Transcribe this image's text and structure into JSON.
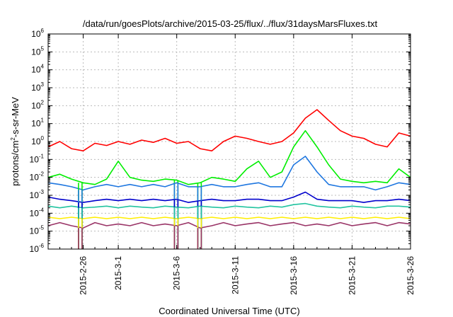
{
  "chart_data": {
    "type": "line",
    "title": "/data/run/goesPlots/archive/2015-03-25/flux/../flux/31daysMarsFluxes.txt",
    "xlabel": "Coordinated Universal Time (UTC)",
    "ylabel": "protons/cm²-s-sr-MeV",
    "ylabel_parts": {
      "pre": "protons/cm",
      "sup": "2",
      "post": "-s-sr-MeV"
    },
    "y_scale": "log",
    "ylim": [
      1e-06,
      1000000.0
    ],
    "xlim": [
      "2015-02-23",
      "2015-03-26"
    ],
    "grid": true,
    "y_ticks": [
      {
        "exp": "-6",
        "value": 1e-06
      },
      {
        "exp": "-5",
        "value": 1e-05
      },
      {
        "exp": "-4",
        "value": 0.0001
      },
      {
        "exp": "-3",
        "value": 0.001
      },
      {
        "exp": "-2",
        "value": 0.01
      },
      {
        "exp": "-1",
        "value": 0.1
      },
      {
        "exp": "0",
        "value": 1
      },
      {
        "exp": "1",
        "value": 10
      },
      {
        "exp": "2",
        "value": 100
      },
      {
        "exp": "3",
        "value": 1000
      },
      {
        "exp": "4",
        "value": 10000
      },
      {
        "exp": "5",
        "value": 100000
      },
      {
        "exp": "6",
        "value": 1000000
      }
    ],
    "x_ticks": [
      {
        "label": "2015-2-26",
        "day": 3
      },
      {
        "label": "2015-3-1",
        "day": 6
      },
      {
        "label": "2015-3-6",
        "day": 11
      },
      {
        "label": "2015-3-11",
        "day": 16
      },
      {
        "label": "2015-3-16",
        "day": 21
      },
      {
        "label": "2015-3-21",
        "day": 26
      },
      {
        "label": "2015-3-26",
        "day": 31
      }
    ],
    "series": [
      {
        "color": "#ff0000",
        "x": [
          0,
          1,
          2,
          3,
          4,
          5,
          6,
          7,
          8,
          9,
          10,
          11,
          12,
          13,
          14,
          15,
          16,
          17,
          18,
          19,
          20,
          21,
          22,
          23,
          24,
          25,
          26,
          27,
          28,
          29,
          30,
          31
        ],
        "y": [
          0.5,
          1.0,
          0.4,
          0.3,
          0.8,
          0.6,
          1.0,
          0.7,
          1.2,
          0.9,
          1.5,
          0.8,
          1.0,
          0.4,
          0.3,
          1.0,
          2.0,
          1.5,
          1.0,
          0.7,
          1.0,
          3.0,
          20,
          60,
          15,
          4,
          2,
          1.5,
          0.7,
          0.5,
          3,
          2
        ]
      },
      {
        "color": "#00ee00",
        "x": [
          0,
          1,
          2,
          3,
          4,
          5,
          6,
          7,
          8,
          9,
          10,
          11,
          12,
          13,
          14,
          15,
          16,
          17,
          18,
          19,
          20,
          21,
          22,
          23,
          24,
          25,
          26,
          27,
          28,
          29,
          30,
          31
        ],
        "y": [
          0.01,
          0.015,
          0.008,
          0.005,
          0.004,
          0.008,
          0.08,
          0.01,
          0.007,
          0.006,
          0.008,
          0.007,
          0.004,
          0.005,
          0.01,
          0.008,
          0.006,
          0.03,
          0.08,
          0.01,
          0.02,
          0.5,
          4,
          0.5,
          0.05,
          0.008,
          0.006,
          0.005,
          0.006,
          0.005,
          0.03,
          0.01
        ]
      },
      {
        "color": "#1f77e0",
        "x": [
          0,
          1,
          2,
          3,
          4,
          5,
          6,
          7,
          8,
          9,
          10,
          11,
          12,
          13,
          14,
          15,
          16,
          17,
          18,
          19,
          20,
          21,
          22,
          23,
          24,
          25,
          26,
          27,
          28,
          29,
          30,
          31
        ],
        "y": [
          0.005,
          0.004,
          0.003,
          0.002,
          0.003,
          0.004,
          0.003,
          0.004,
          0.003,
          0.004,
          0.003,
          0.005,
          0.003,
          0.003,
          0.004,
          0.003,
          0.003,
          0.004,
          0.005,
          0.003,
          0.003,
          0.05,
          0.15,
          0.02,
          0.004,
          0.003,
          0.003,
          0.003,
          0.002,
          0.003,
          0.005,
          0.004
        ]
      },
      {
        "color": "#0000cc",
        "x": [
          0,
          1,
          2,
          3,
          4,
          5,
          6,
          7,
          8,
          9,
          10,
          11,
          12,
          13,
          14,
          15,
          16,
          17,
          18,
          19,
          20,
          21,
          22,
          23,
          24,
          25,
          26,
          27,
          28,
          29,
          30,
          31
        ],
        "y": [
          0.0008,
          0.0006,
          0.0005,
          0.0004,
          0.0005,
          0.0006,
          0.0005,
          0.0006,
          0.0005,
          0.0006,
          0.0005,
          0.0006,
          0.0004,
          0.0005,
          0.0006,
          0.0005,
          0.0005,
          0.0006,
          0.0006,
          0.0005,
          0.0005,
          0.0008,
          0.0015,
          0.0006,
          0.0005,
          0.0005,
          0.0005,
          0.0004,
          0.0005,
          0.0005,
          0.0006,
          0.0005
        ]
      },
      {
        "color": "#22c4a0",
        "x": [
          0,
          1,
          2,
          3,
          4,
          5,
          6,
          7,
          8,
          9,
          10,
          11,
          12,
          13,
          14,
          15,
          16,
          17,
          18,
          19,
          20,
          21,
          22,
          23,
          24,
          25,
          26,
          27,
          28,
          29,
          30,
          31
        ],
        "y": [
          0.00025,
          0.0002,
          0.00025,
          0.0002,
          0.00022,
          0.00025,
          0.0002,
          0.00025,
          0.00022,
          0.0002,
          0.00025,
          0.00022,
          0.0002,
          0.00025,
          0.00022,
          0.0002,
          0.00025,
          0.00022,
          0.0002,
          0.00025,
          0.00022,
          0.0003,
          0.00035,
          0.00025,
          0.00022,
          0.0002,
          0.00025,
          0.00022,
          0.0002,
          0.00025,
          0.00025,
          0.00022
        ]
      },
      {
        "color": "#ffee00",
        "x": [
          0,
          1,
          2,
          3,
          4,
          5,
          6,
          7,
          8,
          9,
          10,
          11,
          12,
          13,
          14,
          15,
          16,
          17,
          18,
          19,
          20,
          21,
          22,
          23,
          24,
          25,
          26,
          27,
          28,
          29,
          30,
          31
        ],
        "y": [
          6e-05,
          5e-05,
          6e-05,
          5e-05,
          6e-05,
          5e-05,
          6e-05,
          5e-05,
          6e-05,
          5e-05,
          6e-05,
          5e-05,
          6e-05,
          5e-05,
          6e-05,
          5e-05,
          6e-05,
          5e-05,
          6e-05,
          5e-05,
          6e-05,
          5e-05,
          6e-05,
          5e-05,
          6e-05,
          5e-05,
          6e-05,
          5e-05,
          6e-05,
          5e-05,
          6e-05,
          5e-05
        ]
      },
      {
        "color": "#993366",
        "x": [
          0,
          1,
          2,
          3,
          4,
          5,
          6,
          7,
          8,
          9,
          10,
          11,
          12,
          13,
          14,
          15,
          16,
          17,
          18,
          19,
          20,
          21,
          22,
          23,
          24,
          25,
          26,
          27,
          28,
          29,
          30,
          31
        ],
        "y": [
          2e-05,
          3e-05,
          2e-05,
          1.5e-05,
          3e-05,
          2e-05,
          2.5e-05,
          2e-05,
          3e-05,
          2e-05,
          2.5e-05,
          2e-05,
          3e-05,
          1.5e-05,
          2e-05,
          3e-05,
          2e-05,
          2.5e-05,
          3e-05,
          2e-05,
          2.5e-05,
          3e-05,
          2e-05,
          2.5e-05,
          2e-05,
          3e-05,
          2e-05,
          2.5e-05,
          3e-05,
          2e-05,
          3e-05,
          2.5e-05
        ]
      }
    ]
  }
}
